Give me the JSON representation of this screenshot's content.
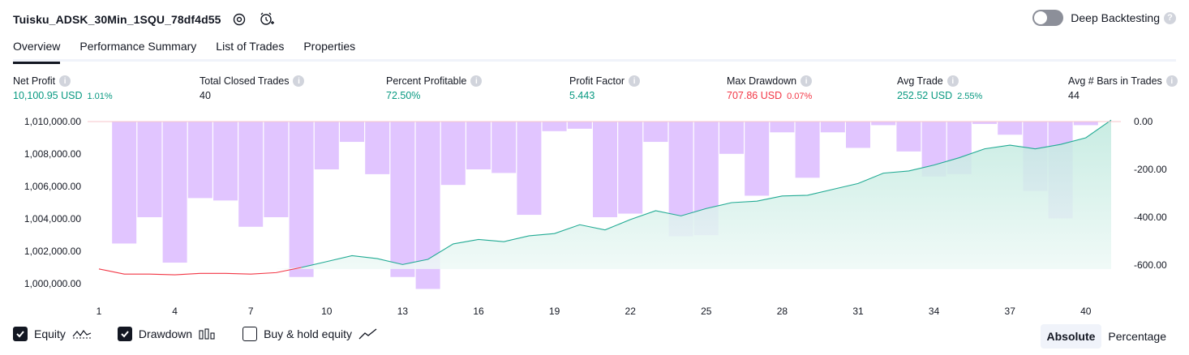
{
  "header": {
    "title": "Tuisku_ADSK_30Min_1SQU_78df4d55",
    "settings_icon": "gear-icon",
    "alert_icon": "add-alert-icon"
  },
  "deep_backtesting": {
    "label": "Deep Backtesting",
    "enabled": false,
    "help_icon": "question-icon"
  },
  "tabs": [
    {
      "label": "Overview",
      "active": true
    },
    {
      "label": "Performance Summary",
      "active": false
    },
    {
      "label": "List of Trades",
      "active": false
    },
    {
      "label": "Properties",
      "active": false
    }
  ],
  "metrics": {
    "net_profit": {
      "label": "Net Profit",
      "value": "10,100.95 USD",
      "pct": "1.01%"
    },
    "total_closed_trades": {
      "label": "Total Closed Trades",
      "value": "40"
    },
    "percent_profitable": {
      "label": "Percent Profitable",
      "value": "72.50%"
    },
    "profit_factor": {
      "label": "Profit Factor",
      "value": "5.443"
    },
    "max_drawdown": {
      "label": "Max Drawdown",
      "value": "707.86 USD",
      "pct": "0.07%"
    },
    "avg_trade": {
      "label": "Avg Trade",
      "value": "252.52 USD",
      "pct": "2.55%"
    },
    "avg_bars": {
      "label": "Avg # Bars in Trades",
      "value": "44"
    }
  },
  "colors": {
    "green": "#089981",
    "red": "#f23645",
    "equity_line": "#22ab94",
    "equity_fill": "#d5f1ea",
    "drawdown_bar": "#e1c5ff",
    "overlap_bar": "#b5b8e6"
  },
  "chart_data": {
    "type": "area",
    "x_ticks": [
      "1",
      "4",
      "7",
      "10",
      "13",
      "16",
      "19",
      "22",
      "25",
      "28",
      "31",
      "34",
      "37",
      "40"
    ],
    "left_axis": {
      "ticks": [
        "1,010,000.00",
        "1,008,000.00",
        "1,006,000.00",
        "1,004,000.00",
        "1,002,000.00",
        "1,000,000.00"
      ],
      "ylim": [
        999000,
        1010000
      ]
    },
    "right_axis": {
      "ticks": [
        "0.00",
        "-200.00",
        "-400.00",
        "-600.00"
      ],
      "ylim": [
        -707.86,
        0
      ]
    },
    "series": [
      {
        "name": "Equity",
        "axis": "left",
        "x": [
          1,
          2,
          3,
          4,
          5,
          6,
          7,
          8,
          9,
          10,
          11,
          12,
          13,
          14,
          15,
          16,
          17,
          18,
          19,
          20,
          21,
          22,
          23,
          24,
          25,
          26,
          27,
          28,
          29,
          30,
          31,
          32,
          33,
          34,
          35,
          36,
          37,
          38,
          39,
          40,
          41
        ],
        "values": [
          1000000,
          999650,
          999650,
          999600,
          999700,
          999700,
          999650,
          999750,
          1000100,
          1000500,
          1000900,
          1000700,
          1000300,
          1000650,
          1001700,
          1002000,
          1001850,
          1002250,
          1002400,
          1003000,
          1002650,
          1003350,
          1003950,
          1003600,
          1004100,
          1004500,
          1004600,
          1004950,
          1005000,
          1005400,
          1005800,
          1006500,
          1006650,
          1007050,
          1007550,
          1008150,
          1008400,
          1008150,
          1008450,
          1008900,
          1010100
        ]
      },
      {
        "name": "Drawdown",
        "axis": "right",
        "x": [
          2,
          3,
          4,
          5,
          6,
          7,
          8,
          9,
          10,
          11,
          12,
          13,
          14,
          15,
          16,
          17,
          18,
          19,
          20,
          21,
          22,
          23,
          24,
          25,
          26,
          27,
          28,
          29,
          30,
          31,
          32,
          33,
          34,
          35,
          36,
          37,
          38,
          39,
          40
        ],
        "values": [
          -510,
          -400,
          -590,
          -320,
          -330,
          -440,
          -400,
          -650,
          -200,
          -85,
          -220,
          -650,
          -700,
          -265,
          -200,
          -215,
          -390,
          -40,
          -30,
          -400,
          -385,
          -85,
          -480,
          -475,
          -135,
          -310,
          -45,
          -235,
          -45,
          -110,
          -15,
          -125,
          -230,
          -220,
          -10,
          -55,
          -290,
          -405,
          -15
        ]
      }
    ]
  },
  "legend": {
    "equity": {
      "label": "Equity",
      "checked": true,
      "icon": "equity-line-icon"
    },
    "drawdown": {
      "label": "Drawdown",
      "checked": true,
      "icon": "drawdown-bars-icon"
    },
    "buy_hold": {
      "label": "Buy & hold equity",
      "checked": false,
      "icon": "buy-hold-line-icon"
    }
  },
  "mode": {
    "absolute": "Absolute",
    "percentage": "Percentage",
    "active": "absolute"
  }
}
